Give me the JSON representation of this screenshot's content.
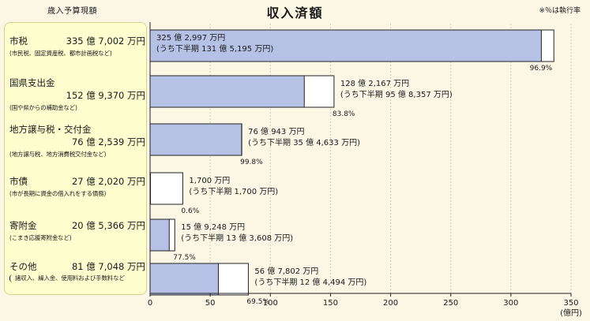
{
  "header": {
    "budget_label": "歳入予算現額",
    "title": "収入済額",
    "rate_note": "※％は執行率"
  },
  "chart_data": {
    "type": "bar",
    "orientation": "horizontal",
    "title": "収入済額",
    "unit_label": "(億円)",
    "xlim": [
      0,
      350
    ],
    "ticks": [
      0,
      50,
      100,
      150,
      200,
      250,
      300,
      350
    ],
    "grid": true,
    "categories": [
      {
        "name": "市税",
        "budget_text": "335 億 7,002 万円",
        "note": "(市民税、固定資産税、都市計画税など)",
        "budget": 335.7002,
        "actual": 325.2997,
        "actual_label_1": "325 億 2,997 万円",
        "actual_label_2": "(うち下半期 131 億 5,195 万円)",
        "rate": "96.9%"
      },
      {
        "name": "国県支出金",
        "budget_text": "152 億 9,370 万円",
        "note": "(国や県からの補助金など)",
        "budget": 152.937,
        "actual": 128.2167,
        "actual_label_1": "128 億 2,167 万円",
        "actual_label_2": "(うち下半期 95 億 8,357 万円)",
        "rate": "83.8%"
      },
      {
        "name": "地方譲与税・交付金",
        "budget_text": "76 億 2,539 万円",
        "note": "(地方譲与税、地方消費税交付金など)",
        "budget": 76.2539,
        "actual": 76.0943,
        "actual_label_1": "76 億 943 万円",
        "actual_label_2": "(うち下半期 35 億 4,633 万円)",
        "rate": "99.8%"
      },
      {
        "name": "市債",
        "budget_text": "27 億 2,020 万円",
        "note": "(市が長期に資金の借入れをする債務)",
        "budget": 27.202,
        "actual": 0.17,
        "actual_label_1": "1,700 万円",
        "actual_label_2": "(うち下半期 1,700 万円)",
        "rate": "0.6%"
      },
      {
        "name": "寄附金",
        "budget_text": "20 億 5,366 万円",
        "note": "(こまき応援寄附金など)",
        "budget": 20.5366,
        "actual": 15.9248,
        "actual_label_1": "15 億 9,248 万円",
        "actual_label_2": "(うち下半期 13 億 3,608 万円)",
        "rate": "77.5%"
      },
      {
        "name": "その他",
        "budget_text": "81 億 7,048 万円",
        "note": "諸収入、繰入金、使用料および手数料など",
        "budget": 81.7048,
        "actual": 56.7802,
        "actual_label_1": "56 億 7,802 万円",
        "actual_label_2": "(うち下半期 12 億 4,494 万円)",
        "rate": "69.5%"
      }
    ]
  }
}
